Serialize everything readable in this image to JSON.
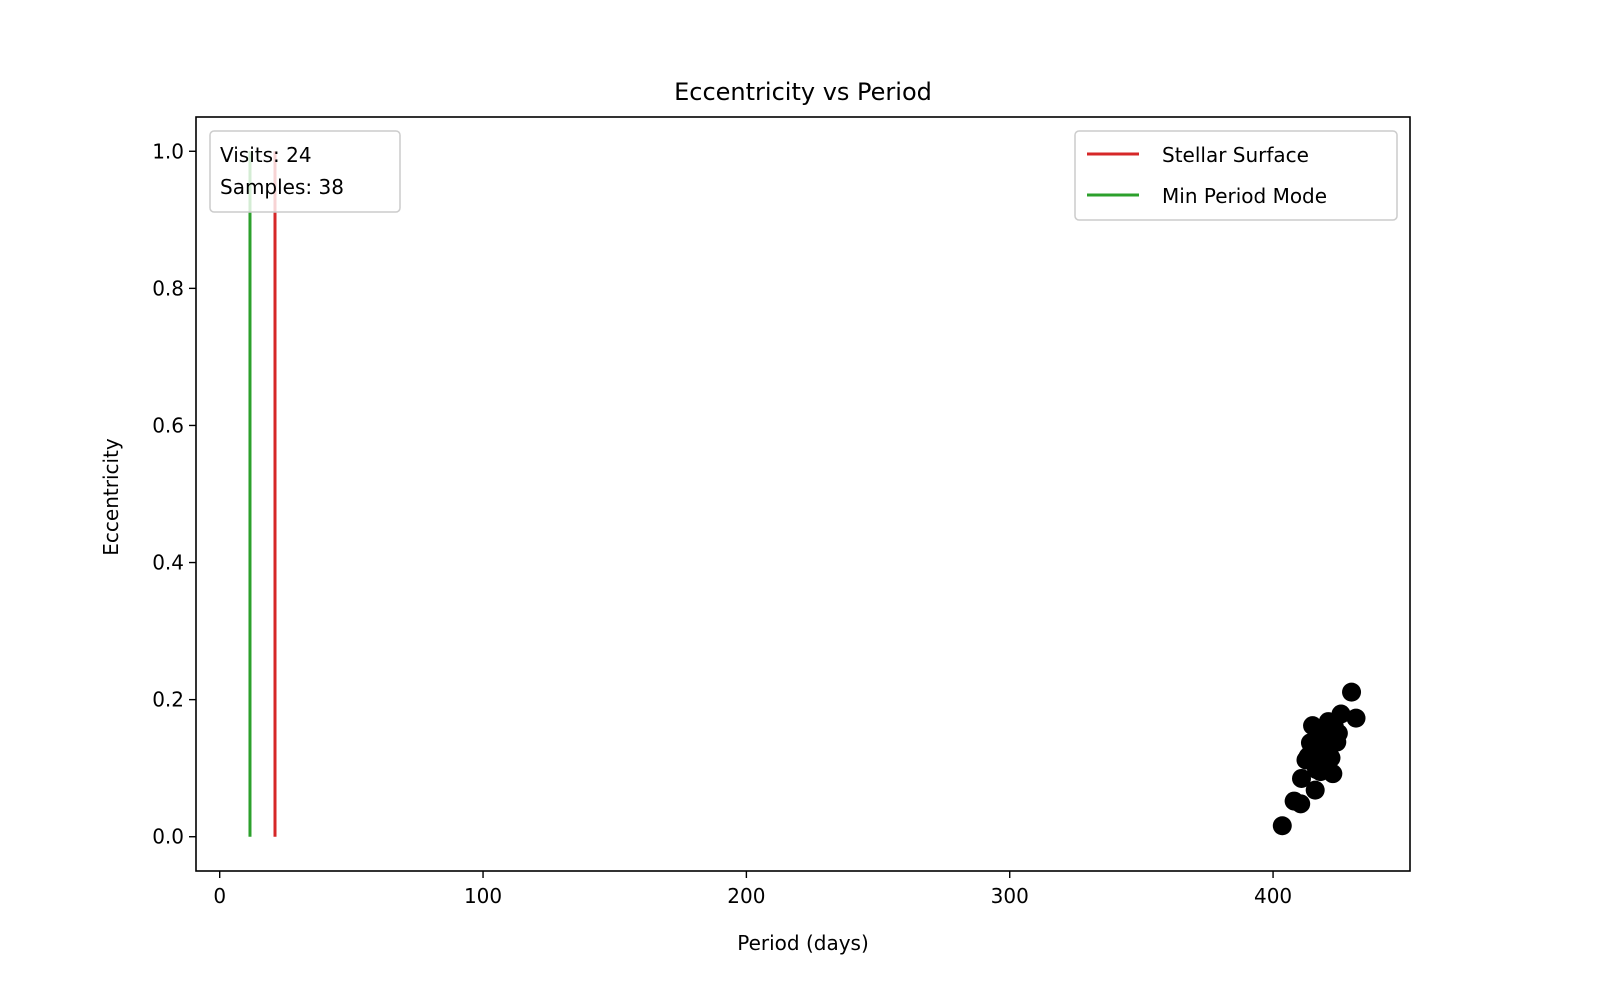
{
  "chart_data": {
    "type": "scatter",
    "title": "Eccentricity vs Period",
    "xlabel": "Period (days)",
    "ylabel": "Eccentricity",
    "xlim": [
      -9,
      452
    ],
    "ylim": [
      -0.05,
      1.05
    ],
    "xticks": [
      0,
      100,
      200,
      300,
      400
    ],
    "yticks": [
      0.0,
      0.2,
      0.4,
      0.6,
      0.8,
      1.0
    ],
    "xtick_labels": [
      "0",
      "100",
      "200",
      "300",
      "400"
    ],
    "ytick_labels": [
      "0.0",
      "0.2",
      "0.4",
      "0.6",
      "0.8",
      "1.0"
    ],
    "grid": false,
    "lines": [
      {
        "name": "Stellar Surface",
        "x": 21,
        "y_range": [
          0,
          1
        ],
        "color": "#d62728"
      },
      {
        "name": "Min Period Mode",
        "x": 11.5,
        "y_range": [
          0,
          1
        ],
        "color": "#2ca02c"
      }
    ],
    "series": [
      {
        "color": "#000000",
        "x": [
          403.5,
          408.0,
          410.5,
          410.8,
          412.5,
          413.3,
          414.2,
          414.5,
          415.0,
          416.0,
          416.5,
          416.8,
          417.2,
          417.5,
          417.8,
          418.0,
          418.3,
          418.6,
          419.0,
          419.3,
          419.6,
          420.0,
          420.3,
          420.5,
          420.8,
          421.0,
          421.3,
          421.6,
          422.0,
          422.3,
          422.7,
          423.2,
          423.6,
          424.2,
          424.8,
          425.8,
          429.8,
          431.5
        ],
        "y": [
          0.016,
          0.052,
          0.048,
          0.085,
          0.112,
          0.117,
          0.137,
          0.123,
          0.162,
          0.068,
          0.098,
          0.152,
          0.132,
          0.11,
          0.138,
          0.095,
          0.122,
          0.146,
          0.105,
          0.152,
          0.114,
          0.127,
          0.16,
          0.142,
          0.102,
          0.168,
          0.132,
          0.155,
          0.115,
          0.137,
          0.092,
          0.162,
          0.145,
          0.138,
          0.151,
          0.179,
          0.211,
          0.173
        ]
      }
    ],
    "legend": {
      "position": "top-right",
      "entries": [
        {
          "label": "Stellar Surface",
          "color": "#d62728"
        },
        {
          "label": "Min Period Mode",
          "color": "#2ca02c"
        }
      ]
    },
    "info_box": {
      "position": "top-left",
      "lines": [
        "Visits: 24",
        "Samples: 38"
      ]
    }
  }
}
